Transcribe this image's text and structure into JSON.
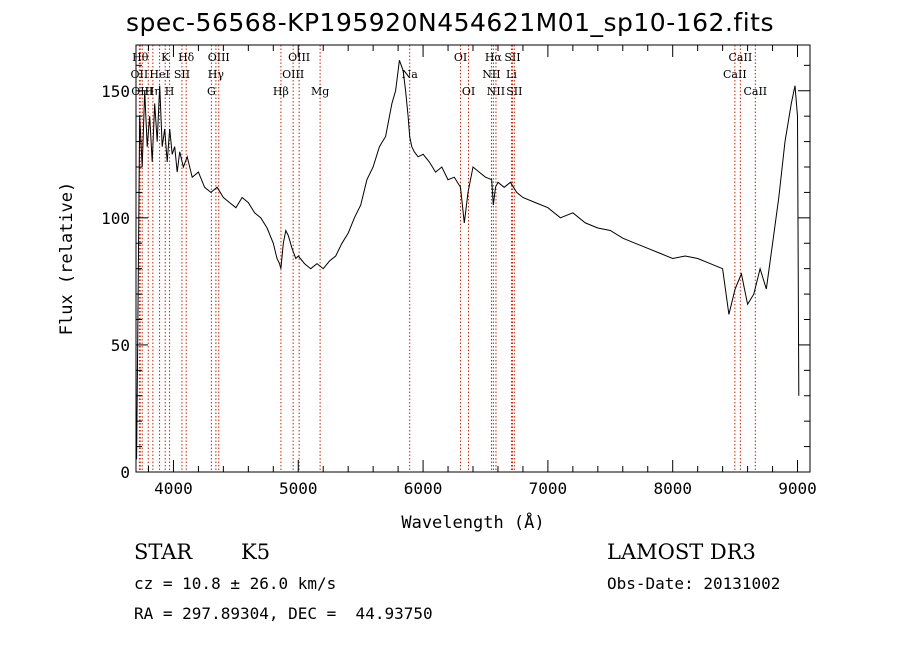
{
  "chart_data": {
    "type": "line",
    "title": "spec-56568-KP195920N454621M01_sp10-162.fits",
    "xlabel": "Wavelength (Å)",
    "ylabel": "Flux (relative)",
    "xlim": [
      3700,
      9100
    ],
    "ylim": [
      0,
      168
    ],
    "x_ticks": [
      4000,
      5000,
      6000,
      7000,
      8000,
      9000
    ],
    "y_ticks": [
      0,
      50,
      100,
      150
    ],
    "grid": false,
    "line_color": "#000000",
    "marker_color": "#cc2200",
    "series": [
      {
        "x": [
          3705,
          3715,
          3730,
          3750,
          3770,
          3790,
          3810,
          3830,
          3850,
          3870,
          3890,
          3910,
          3930,
          3950,
          3970,
          3990,
          4010,
          4030,
          4050,
          4080,
          4110,
          4150,
          4200,
          4250,
          4300,
          4350,
          4400,
          4450,
          4500,
          4550,
          4600,
          4650,
          4700,
          4750,
          4800,
          4830,
          4850,
          4861,
          4880,
          4900,
          4920,
          4950,
          4980,
          5000,
          5050,
          5100,
          5150,
          5200,
          5250,
          5300,
          5350,
          5400,
          5450,
          5500,
          5550,
          5600,
          5650,
          5700,
          5750,
          5780,
          5810,
          5840,
          5860,
          5880,
          5893,
          5910,
          5930,
          5960,
          6000,
          6050,
          6100,
          6150,
          6200,
          6250,
          6300,
          6330,
          6360,
          6400,
          6450,
          6500,
          6550,
          6563,
          6580,
          6600,
          6650,
          6700,
          6750,
          6800,
          6900,
          7000,
          7100,
          7200,
          7300,
          7400,
          7500,
          7600,
          7700,
          7800,
          7900,
          8000,
          8100,
          8200,
          8300,
          8400,
          8450,
          8500,
          8550,
          8600,
          8650,
          8700,
          8750,
          8800,
          8850,
          8900,
          8950,
          8980,
          9000,
          9010
        ],
        "values": [
          5,
          60,
          140,
          120,
          150,
          128,
          140,
          122,
          145,
          130,
          152,
          128,
          135,
          122,
          135,
          125,
          128,
          118,
          126,
          120,
          124,
          116,
          118,
          112,
          110,
          112,
          108,
          106,
          104,
          108,
          106,
          102,
          100,
          96,
          90,
          84,
          82,
          80,
          90,
          95,
          93,
          88,
          84,
          85,
          82,
          80,
          82,
          80,
          83,
          85,
          90,
          94,
          100,
          105,
          115,
          120,
          128,
          132,
          145,
          150,
          162,
          158,
          150,
          140,
          132,
          128,
          126,
          124,
          125,
          122,
          118,
          120,
          115,
          116,
          112,
          98,
          110,
          120,
          118,
          116,
          115,
          105,
          112,
          114,
          112,
          114,
          110,
          108,
          106,
          104,
          100,
          102,
          98,
          96,
          95,
          92,
          90,
          88,
          86,
          84,
          85,
          84,
          82,
          80,
          62,
          72,
          78,
          66,
          70,
          80,
          72,
          90,
          108,
          130,
          145,
          152,
          140,
          30
        ]
      }
    ],
    "lines": [
      {
        "x": 3734,
        "label": "Hθ",
        "row": 0
      },
      {
        "x": 3727,
        "label": "OII",
        "row": 1
      },
      {
        "x": 3750,
        "label": "OIII",
        "row": 2
      },
      {
        "x": 3798,
        "label": "",
        "row": 1
      },
      {
        "x": 3835,
        "label": "Hη",
        "row": 2
      },
      {
        "x": 3889,
        "label": "HeI",
        "row": 1
      },
      {
        "x": 3934,
        "label": "K",
        "row": 0
      },
      {
        "x": 3969,
        "label": "H",
        "row": 2
      },
      {
        "x": 4068,
        "label": "SII",
        "row": 1
      },
      {
        "x": 4102,
        "label": "Hδ",
        "row": 0
      },
      {
        "x": 4304,
        "label": "G",
        "row": 2
      },
      {
        "x": 4340,
        "label": "Hγ",
        "row": 1
      },
      {
        "x": 4363,
        "label": "OIII",
        "row": 0
      },
      {
        "x": 4861,
        "label": "Hβ",
        "row": 2
      },
      {
        "x": 4959,
        "label": "OIII",
        "row": 1
      },
      {
        "x": 5007,
        "label": "OIII",
        "row": 0
      },
      {
        "x": 5175,
        "label": "Mg",
        "row": 2
      },
      {
        "x": 5893,
        "label": "Na",
        "row": 1
      },
      {
        "x": 6300,
        "label": "OI",
        "row": 0
      },
      {
        "x": 6364,
        "label": "OI",
        "row": 2
      },
      {
        "x": 6548,
        "label": "NII",
        "row": 1
      },
      {
        "x": 6563,
        "label": "Hα",
        "row": 0
      },
      {
        "x": 6584,
        "label": "NII",
        "row": 2
      },
      {
        "x": 6708,
        "label": "Li",
        "row": 1
      },
      {
        "x": 6716,
        "label": "SII",
        "row": 0
      },
      {
        "x": 6731,
        "label": "SII",
        "row": 2
      },
      {
        "x": 8498,
        "label": "CaII",
        "row": 1
      },
      {
        "x": 8542,
        "label": "CaII",
        "row": 0
      },
      {
        "x": 8662,
        "label": "CaII",
        "row": 2
      }
    ]
  },
  "info": {
    "class": "STAR",
    "subclass": "K5",
    "survey": "LAMOST DR3",
    "cz": "cz = 10.8 ± 26.0 km/s",
    "obs_date": "Obs-Date: 20131002",
    "coords": "RA = 297.89304, DEC =  44.93750"
  }
}
